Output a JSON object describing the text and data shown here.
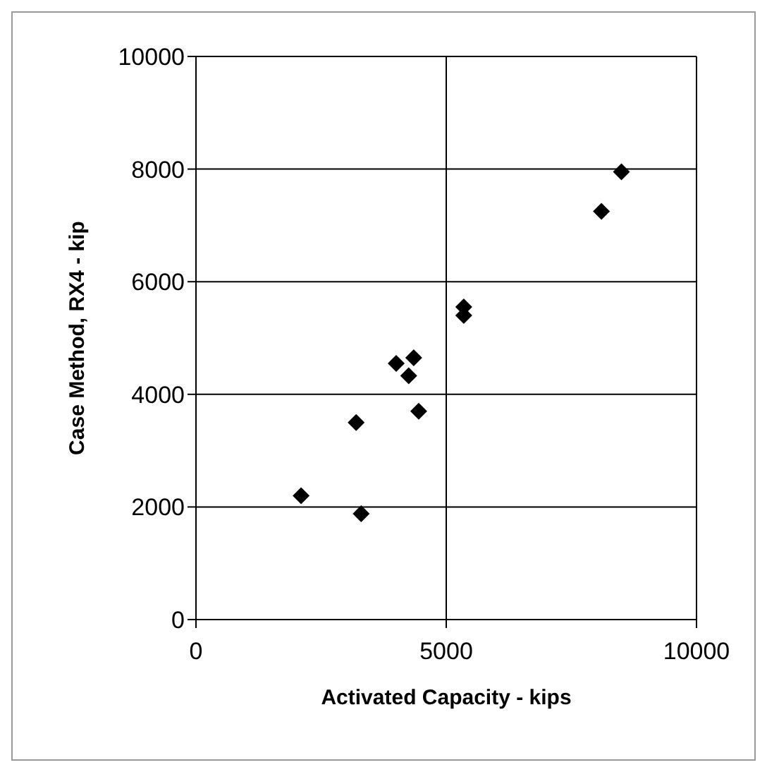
{
  "chart_data": {
    "type": "scatter",
    "xlabel": "Activated Capacity - kips",
    "ylabel": "Case Method, RX4 - kip",
    "x": [
      2100,
      3300,
      3200,
      4450,
      4000,
      4250,
      4350,
      5350,
      5350,
      8100,
      8500
    ],
    "values": [
      2200,
      1880,
      3500,
      3700,
      4550,
      4330,
      4650,
      5550,
      5400,
      7250,
      7950
    ],
    "color": "#000000",
    "marker": "diamond",
    "xlim": [
      0,
      10000
    ],
    "xticks": [
      0,
      5000,
      10000
    ],
    "ylim": [
      0,
      10000
    ],
    "yticks": [
      0,
      2000,
      4000,
      6000,
      8000,
      10000
    ],
    "grid": true
  }
}
